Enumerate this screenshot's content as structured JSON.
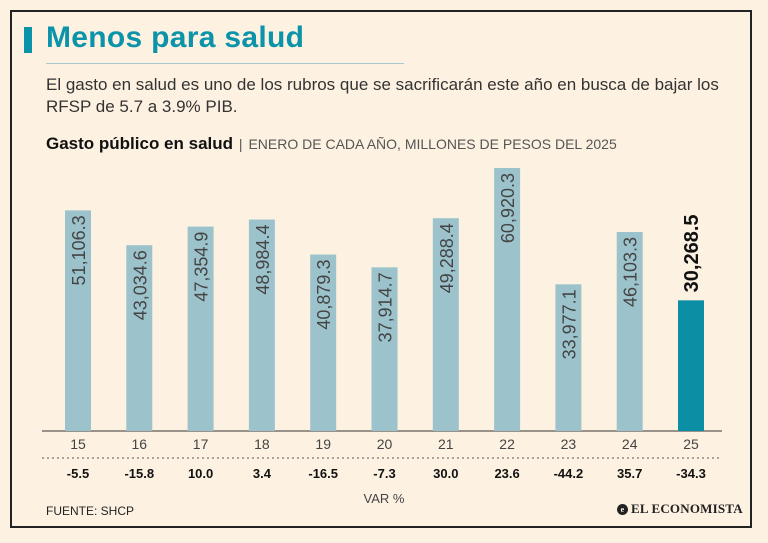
{
  "title": "Menos para salud",
  "subtitle": "El gasto en salud es uno de los rubros que se sacrificarán este año en busca de bajar los RFSP de 5.7 a 3.9% PIB.",
  "chart_heading": {
    "bold": "Gasto público en salud",
    "separator": "|",
    "detail": "ENERO DE CADA AÑO, MILLONES DE PESOS DEL 2025"
  },
  "source": "FUENTE: SHCP",
  "logo_text": "EL ECONOMISTA",
  "colors": {
    "bar": "#9cc3cc",
    "highlight": "#0b8fa5",
    "title": "#0b93aa",
    "background": "#fdf2e1"
  },
  "chart_data": {
    "type": "bar",
    "title": "Gasto público en salud",
    "ylabel": "Millones de pesos del 2025",
    "xlabel": "",
    "ylim": [
      0,
      60920.3
    ],
    "categories": [
      "15",
      "16",
      "17",
      "18",
      "19",
      "20",
      "21",
      "22",
      "23",
      "24",
      "25"
    ],
    "values": [
      51106.3,
      43034.6,
      47354.9,
      48984.4,
      40879.3,
      37914.7,
      49288.4,
      60920.3,
      33977.1,
      46103.3,
      30268.5
    ],
    "value_labels": [
      "51,106.3",
      "43,034.6",
      "47,354.9",
      "48,984.4",
      "40,879.3",
      "37,914.7",
      "49,288.4",
      "60,920.3",
      "33,977.1",
      "46,103.3",
      "30,268.5"
    ],
    "highlight_index": 10,
    "variation_label": "VAR %",
    "variation": [
      "-5.5",
      "-15.8",
      "10.0",
      "3.4",
      "-16.5",
      "-7.3",
      "30.0",
      "23.6",
      "-44.2",
      "35.7",
      "-34.3"
    ]
  }
}
